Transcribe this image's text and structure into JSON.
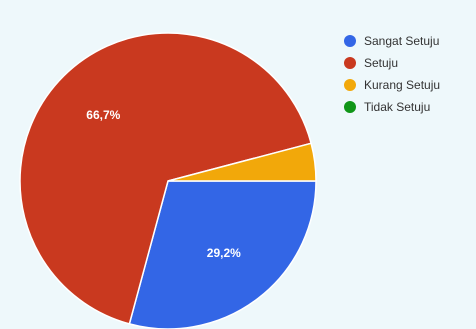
{
  "chart_data": {
    "type": "pie",
    "categories": [
      "Sangat Setuju",
      "Setuju",
      "Kurang Setuju",
      "Tidak Setuju"
    ],
    "values": [
      29.2,
      66.7,
      4.1,
      0
    ],
    "data_labels": [
      "29,2%",
      "66,7%",
      "",
      ""
    ],
    "colors": [
      "#3366e6",
      "#c9391f",
      "#f2a80a",
      "#109618"
    ],
    "legend_position": "right"
  }
}
